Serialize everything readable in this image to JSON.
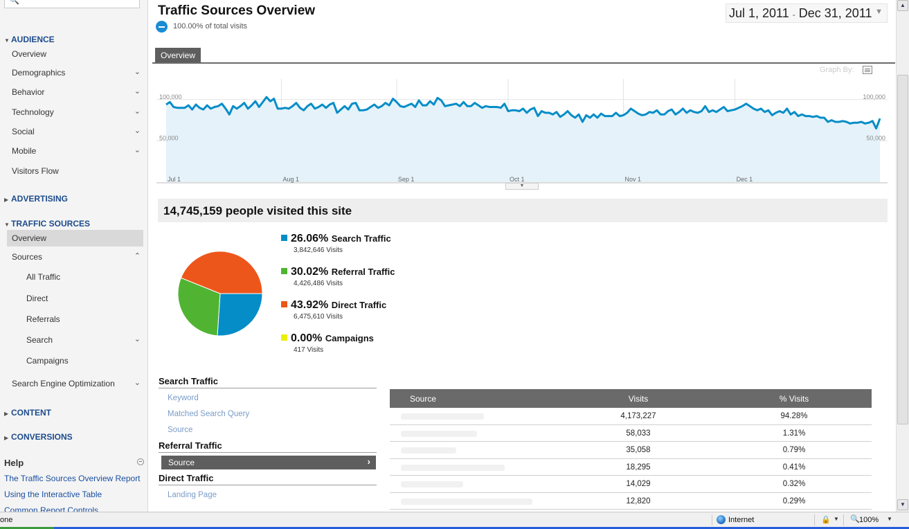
{
  "sidebar": {
    "sections": {
      "audience": "AUDIENCE",
      "advertising": "ADVERTISING",
      "traffic_sources": "TRAFFIC SOURCES",
      "content": "CONTENT",
      "conversions": "CONVERSIONS"
    },
    "audience_items": [
      "Overview",
      "Demographics",
      "Behavior",
      "Technology",
      "Social",
      "Mobile",
      "Visitors Flow"
    ],
    "traffic_items": {
      "overview": "Overview",
      "sources": "Sources",
      "all_traffic": "All Traffic",
      "direct": "Direct",
      "referrals": "Referrals",
      "search": "Search",
      "campaigns": "Campaigns",
      "seo": "Search Engine Optimization"
    },
    "help": {
      "title": "Help",
      "links": [
        "The Traffic Sources Overview Report",
        "Using the Interactive Table",
        "Common Report Controls"
      ]
    }
  },
  "header": {
    "title": "Traffic Sources Overview",
    "visits_pct": "100.00% of total visits",
    "date_start": "Jul 1, 2011",
    "date_sep": "-",
    "date_end": "Dec 31, 2011"
  },
  "tabs": {
    "overview": "Overview"
  },
  "graph_by": "Graph By:",
  "chart_data": {
    "type": "line",
    "y_ticks": [
      "100,000",
      "50,000"
    ],
    "x_ticks": [
      "Jul 1",
      "Aug 1",
      "Sep 1",
      "Oct 1",
      "Nov 1",
      "Dec 1"
    ],
    "ylim": [
      0,
      125000
    ],
    "line_color": "#058dc7",
    "fill_color": "#e5f2f9",
    "values": [
      94000,
      97000,
      91000,
      90000,
      90000,
      90000,
      93000,
      88000,
      94000,
      90000,
      88000,
      93000,
      89000,
      91000,
      92000,
      95000,
      89000,
      82000,
      92000,
      89000,
      92000,
      96000,
      89000,
      93000,
      98000,
      91000,
      97000,
      103000,
      98000,
      101000,
      89000,
      89000,
      90000,
      89000,
      92000,
      96000,
      90000,
      87000,
      92000,
      95000,
      89000,
      91000,
      94000,
      90000,
      94000,
      96000,
      84000,
      88000,
      92000,
      88000,
      95000,
      96000,
      87000,
      87000,
      88000,
      91000,
      94000,
      90000,
      92000,
      96000,
      93000,
      101000,
      97000,
      92000,
      91000,
      93000,
      95000,
      91000,
      99000,
      93000,
      93000,
      98000,
      94000,
      102000,
      99000,
      92000,
      93000,
      94000,
      95000,
      92000,
      97000,
      92000,
      92000,
      96000,
      93000,
      90000,
      92000,
      91000,
      91000,
      91000,
      90000,
      95000,
      86000,
      87000,
      87000,
      86000,
      89000,
      84000,
      88000,
      90000,
      80000,
      86000,
      84000,
      84000,
      82000,
      85000,
      79000,
      82000,
      86000,
      81000,
      78000,
      82000,
      73000,
      81000,
      78000,
      82000,
      78000,
      83000,
      80000,
      80000,
      80000,
      84000,
      80000,
      81000,
      84000,
      89000,
      86000,
      83000,
      81000,
      82000,
      85000,
      84000,
      87000,
      82000,
      82000,
      86000,
      88000,
      82000,
      85000,
      89000,
      84000,
      87000,
      85000,
      84000,
      86000,
      92000,
      85000,
      87000,
      85000,
      88000,
      91000,
      86000,
      87000,
      88000,
      90000,
      92000,
      95000,
      92000,
      89000,
      87000,
      89000,
      85000,
      87000,
      81000,
      84000,
      86000,
      84000,
      89000,
      82000,
      85000,
      80000,
      82000,
      80000,
      80000,
      79000,
      80000,
      78000,
      78000,
      73000,
      75000,
      73000,
      73000,
      74000,
      73000,
      71000,
      72000,
      72000,
      73000,
      71000,
      72000,
      74000,
      65000,
      77000
    ]
  },
  "summary": "14,745,159 people visited this site",
  "pie": {
    "slices": [
      {
        "label": "Search Traffic",
        "pct_text": "26.06%",
        "pct": 26.06,
        "visits": "3,842,646 Visits",
        "color": "#058dc7"
      },
      {
        "label": "Referral Traffic",
        "pct_text": "30.02%",
        "pct": 30.02,
        "visits": "4,426,486 Visits",
        "color": "#50b432"
      },
      {
        "label": "Direct Traffic",
        "pct_text": "43.92%",
        "pct": 43.92,
        "visits": "6,475,610 Visits",
        "color": "#ed561b"
      },
      {
        "label": "Campaigns",
        "pct_text": "0.00%",
        "pct": 0.0,
        "visits": "417 Visits",
        "color": "#edef00"
      }
    ]
  },
  "groups": {
    "search_traffic": "Search Traffic",
    "search_links": [
      "Keyword",
      "Matched Search Query",
      "Source"
    ],
    "referral_traffic": "Referral Traffic",
    "referral_selected": "Source",
    "direct_traffic": "Direct Traffic",
    "direct_links": [
      "Landing Page"
    ]
  },
  "table": {
    "headers": {
      "source": "Source",
      "visits": "Visits",
      "pct": "% Visits"
    },
    "rows": [
      {
        "visits": "4,173,227",
        "pct": "94.28%"
      },
      {
        "visits": "58,033",
        "pct": "1.31%"
      },
      {
        "visits": "35,058",
        "pct": "0.79%"
      },
      {
        "visits": "18,295",
        "pct": "0.41%"
      },
      {
        "visits": "14,029",
        "pct": "0.32%"
      },
      {
        "visits": "12,820",
        "pct": "0.29%"
      }
    ]
  },
  "statusbar": {
    "status": "one",
    "zone": "Internet",
    "zoom": "100%"
  }
}
